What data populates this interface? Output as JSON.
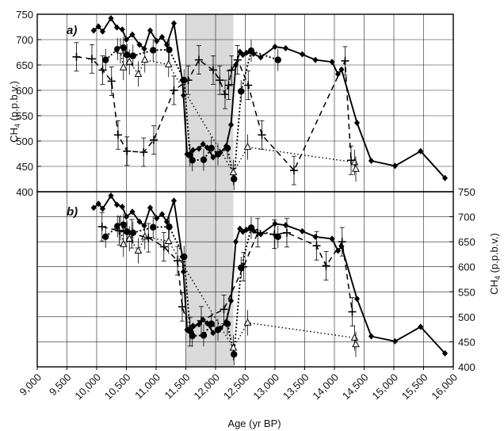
{
  "chart_data": [
    {
      "type": "line",
      "panel_label": "a)",
      "title": "",
      "xlabel": "Age (yr BP)",
      "ylabel": "CH",
      "ylabel_sub": "4",
      "ylabel_unit": " (p.p.b.v.)",
      "xlim": [
        9000,
        16000
      ],
      "ylim": [
        400,
        750
      ],
      "xticks": [
        "9,000",
        "9,500",
        "10,000",
        "10,500",
        "11,000",
        "11,500",
        "12,000",
        "12,500",
        "13,000",
        "13,500",
        "14,000",
        "14,500",
        "15,000",
        "15,500",
        "16,000"
      ],
      "yticks": [
        "750",
        "700",
        "650",
        "600",
        "550",
        "500",
        "450",
        "400"
      ],
      "y_axis_side": "left",
      "grid": true,
      "shaded_interval": [
        11500,
        12300
      ],
      "series": [
        {
          "style": "solid-diamond",
          "x": [
            9950,
            10030,
            10100,
            10240,
            10340,
            10430,
            10500,
            10600,
            10720,
            10800,
            10900,
            11010,
            11100,
            11180,
            11300,
            11440,
            11460,
            11520,
            11620,
            11720,
            11790,
            11860,
            11960,
            12080,
            12180,
            12260,
            12340,
            12410,
            12460,
            12520,
            12640,
            12760,
            13000,
            13180,
            13460,
            13680,
            13960,
            14060,
            14120,
            14380,
            14620,
            15020,
            15450,
            15860
          ],
          "y": [
            718,
            726,
            716,
            742,
            724,
            720,
            700,
            710,
            690,
            682,
            718,
            697,
            705,
            690,
            732,
            620,
            590,
            474,
            482,
            485,
            494,
            487,
            468,
            477,
            490,
            532,
            650,
            676,
            670,
            674,
            672,
            665,
            686,
            683,
            671,
            660,
            656,
            632,
            641,
            536,
            461,
            451,
            480,
            427
          ]
        },
        {
          "style": "dotted-dot",
          "x": [
            10150,
            10350,
            10450,
            10510,
            10610,
            10950,
            11220,
            11470,
            11570,
            11610,
            11800,
            11930,
            12040,
            12200,
            12310,
            12430,
            12600,
            13050
          ],
          "y": [
            660,
            681,
            684,
            670,
            668,
            679,
            680,
            620,
            472,
            462,
            463,
            486,
            474,
            486,
            425,
            598,
            678,
            660
          ]
        },
        {
          "style": "dotted-triangle",
          "x": [
            10400,
            10450,
            10550,
            10700,
            10810,
            11210,
            12300,
            12540,
            14340,
            14360
          ],
          "y": [
            678,
            645,
            656,
            632,
            660,
            651,
            438,
            488,
            458,
            445
          ]
        },
        {
          "style": "dashed-cross",
          "x": [
            9660,
            9920,
            10100,
            10250,
            10360,
            10510,
            10790,
            10960,
            11300,
            11540,
            11720,
            11960,
            12070,
            12160,
            12220,
            12270,
            12370,
            12550,
            12780,
            13320,
            14180,
            14280
          ],
          "y": [
            666,
            662,
            640,
            618,
            512,
            480,
            478,
            502,
            600,
            620,
            660,
            640,
            620,
            592,
            610,
            640,
            660,
            610,
            512,
            442,
            658,
            462
          ]
        }
      ]
    },
    {
      "type": "line",
      "panel_label": "b)",
      "title": "",
      "xlabel": "Age (yr BP)",
      "ylabel": "CH",
      "ylabel_sub": "4",
      "ylabel_unit": " (p.p.b.v.)",
      "xlim": [
        9000,
        16000
      ],
      "ylim": [
        400,
        750
      ],
      "xticks": [
        "9,000",
        "9,500",
        "10,000",
        "10,500",
        "11,000",
        "11,500",
        "12,000",
        "12,500",
        "13,000",
        "13,500",
        "14,000",
        "14,500",
        "15,000",
        "15,500",
        "16,000"
      ],
      "yticks": [
        "750",
        "700",
        "650",
        "600",
        "550",
        "500",
        "450",
        "400"
      ],
      "y_axis_side": "right",
      "grid": true,
      "shaded_interval": [
        11500,
        12300
      ],
      "series": [
        {
          "style": "solid-diamond",
          "x": [
            9950,
            10030,
            10100,
            10240,
            10340,
            10430,
            10500,
            10600,
            10720,
            10800,
            10900,
            11010,
            11100,
            11180,
            11300,
            11440,
            11460,
            11520,
            11620,
            11720,
            11790,
            11860,
            11960,
            12080,
            12180,
            12260,
            12340,
            12410,
            12460,
            12520,
            12640,
            12760,
            13000,
            13180,
            13460,
            13680,
            13960,
            14060,
            14120,
            14380,
            14620,
            15020,
            15450,
            15860
          ],
          "y": [
            718,
            726,
            716,
            742,
            724,
            720,
            700,
            710,
            690,
            682,
            718,
            697,
            705,
            690,
            732,
            620,
            590,
            474,
            482,
            485,
            494,
            487,
            468,
            477,
            490,
            532,
            650,
            676,
            670,
            674,
            672,
            665,
            686,
            683,
            671,
            660,
            656,
            632,
            641,
            536,
            461,
            451,
            480,
            427
          ]
        },
        {
          "style": "dotted-dot",
          "x": [
            10150,
            10350,
            10450,
            10510,
            10610,
            10950,
            11220,
            11470,
            11570,
            11610,
            11800,
            11930,
            12040,
            12200,
            12310,
            12430,
            12600,
            13050
          ],
          "y": [
            660,
            681,
            684,
            670,
            668,
            679,
            680,
            620,
            472,
            462,
            463,
            486,
            474,
            486,
            425,
            598,
            678,
            660
          ]
        },
        {
          "style": "dotted-triangle",
          "x": [
            10400,
            10450,
            10550,
            10700,
            10810,
            11210,
            12300,
            12540,
            14340,
            14360
          ],
          "y": [
            678,
            645,
            656,
            632,
            660,
            651,
            438,
            488,
            458,
            445
          ]
        },
        {
          "style": "dashed-cross",
          "x": [
            10090,
            10380,
            10590,
            10870,
            11130,
            11360,
            11440,
            11570,
            11760,
            12140,
            12470,
            12710,
            12990,
            13200,
            13700,
            13860,
            14130,
            14300
          ],
          "y": [
            680,
            672,
            666,
            658,
            640,
            612,
            520,
            470,
            492,
            515,
            600,
            668,
            665,
            668,
            642,
            602,
            650,
            510
          ]
        }
      ]
    }
  ]
}
